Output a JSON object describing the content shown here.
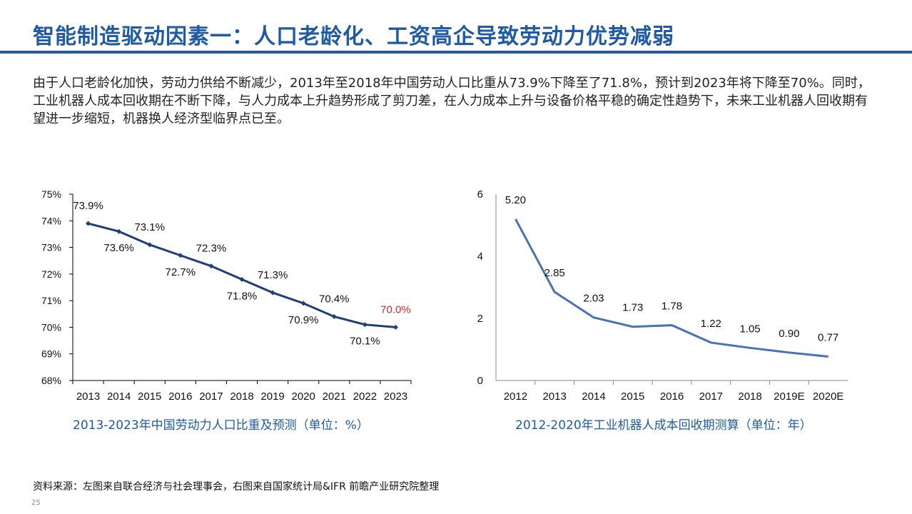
{
  "slide": {
    "title": "智能制造驱动因素一：人口老龄化、工资高企导致劳动力优势减弱",
    "intro": "由于人口老龄化加快，劳动力供给不断减少，2013年至2018年中国劳动人口比重从73.9%下降至了71.8%，预计到2023年将下降至70%。同时，工业机器人成本回收期在不断下降，与人力成本上升趋势形成了剪刀差，在人力成本上升与设备价格平稳的确定性趋势下，未来工业机器人回收期有望进一步缩短，机器换人经济型临界点已至。",
    "source": "资料来源：左图来自联合经济与社会理事会，右图来自国家统计局&IFR 前瞻产业研究院整理",
    "page_number": "25"
  },
  "colors": {
    "title": "#1f5aa6",
    "left_line": "#1f3f7a",
    "right_line": "#4a72b8",
    "highlight_label": "#d9262c",
    "axis": "#000000"
  },
  "chart_data": [
    {
      "type": "line",
      "caption": "2013-2023年中国劳动力人口比重及预测（单位：%）",
      "x": [
        "2013",
        "2014",
        "2015",
        "2016",
        "2017",
        "2018",
        "2019",
        "2020",
        "2021",
        "2022",
        "2023"
      ],
      "values": [
        73.9,
        73.6,
        73.1,
        72.7,
        72.3,
        71.8,
        71.3,
        70.9,
        70.4,
        70.1,
        70.0
      ],
      "data_labels": [
        "73.9%",
        "73.6%",
        "73.1%",
        "72.7%",
        "72.3%",
        "71.8%",
        "71.3%",
        "70.9%",
        "70.4%",
        "70.1%",
        "70.0%"
      ],
      "label_position": [
        "above",
        "below",
        "above",
        "below",
        "above",
        "below",
        "above",
        "below",
        "above",
        "below",
        "above"
      ],
      "highlight_index": 10,
      "ylim": [
        68,
        75
      ],
      "yticks": [
        68,
        69,
        70,
        71,
        72,
        73,
        74,
        75
      ],
      "ytick_labels": [
        "68%",
        "69%",
        "70%",
        "71%",
        "72%",
        "73%",
        "74%",
        "75%"
      ],
      "markers": true,
      "grid": false
    },
    {
      "type": "line",
      "caption": "2012-2020年工业机器人成本回收期测算（单位：年）",
      "x": [
        "2012",
        "2013",
        "2014",
        "2015",
        "2016",
        "2017",
        "2018",
        "2019E",
        "2020E"
      ],
      "values": [
        5.2,
        2.85,
        2.03,
        1.73,
        1.78,
        1.22,
        1.05,
        0.9,
        0.77
      ],
      "data_labels": [
        "5.20",
        "2.85",
        "2.03",
        "1.73",
        "1.78",
        "1.22",
        "1.05",
        "0.90",
        "0.77"
      ],
      "ylim": [
        0,
        6
      ],
      "yticks": [
        0,
        2,
        4,
        6
      ],
      "ytick_labels": [
        "0",
        "2",
        "4",
        "6"
      ],
      "markers": false,
      "grid": false
    }
  ]
}
